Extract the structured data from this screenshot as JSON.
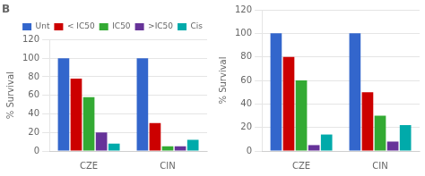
{
  "chart_data": [
    {
      "type": "bar",
      "title": "B",
      "categories": [
        "CZE",
        "CIN"
      ],
      "series": [
        {
          "name": "Unt",
          "color": "#3366cc",
          "values": [
            100,
            100
          ]
        },
        {
          "name": "< IC50",
          "color": "#cc0000",
          "values": [
            78,
            30
          ]
        },
        {
          "name": "IC50",
          "color": "#33aa33",
          "values": [
            58,
            5
          ]
        },
        {
          "name": ">IC50",
          "color": "#663399",
          "values": [
            20,
            5
          ]
        },
        {
          "name": "Cis",
          "color": "#00aaaa",
          "values": [
            8,
            12
          ]
        }
      ],
      "y_label": "% Survival",
      "ylim": [
        0,
        120
      ],
      "yticks": [
        0,
        20,
        40,
        60,
        80,
        100,
        120
      ],
      "grid": "y",
      "legend": "upper right"
    },
    {
      "type": "bar",
      "categories": [
        "CZE",
        "CIN"
      ],
      "series": [
        {
          "name": "Unt",
          "color": "#3366cc",
          "values": [
            100,
            100
          ]
        },
        {
          "name": "< IC50",
          "color": "#cc0000",
          "values": [
            80,
            50
          ]
        },
        {
          "name": "IC50",
          "color": "#33aa33",
          "values": [
            60,
            30
          ]
        },
        {
          "name": ">IC50",
          "color": "#663399",
          "values": [
            5,
            8
          ]
        },
        {
          "name": "Cis",
          "color": "#00aaaa",
          "values": [
            14,
            22
          ]
        }
      ],
      "y_label": "% Survival",
      "ylim": [
        0,
        120
      ],
      "yticks": [
        0,
        20,
        40,
        60,
        80,
        100,
        120
      ],
      "grid": "y"
    }
  ]
}
